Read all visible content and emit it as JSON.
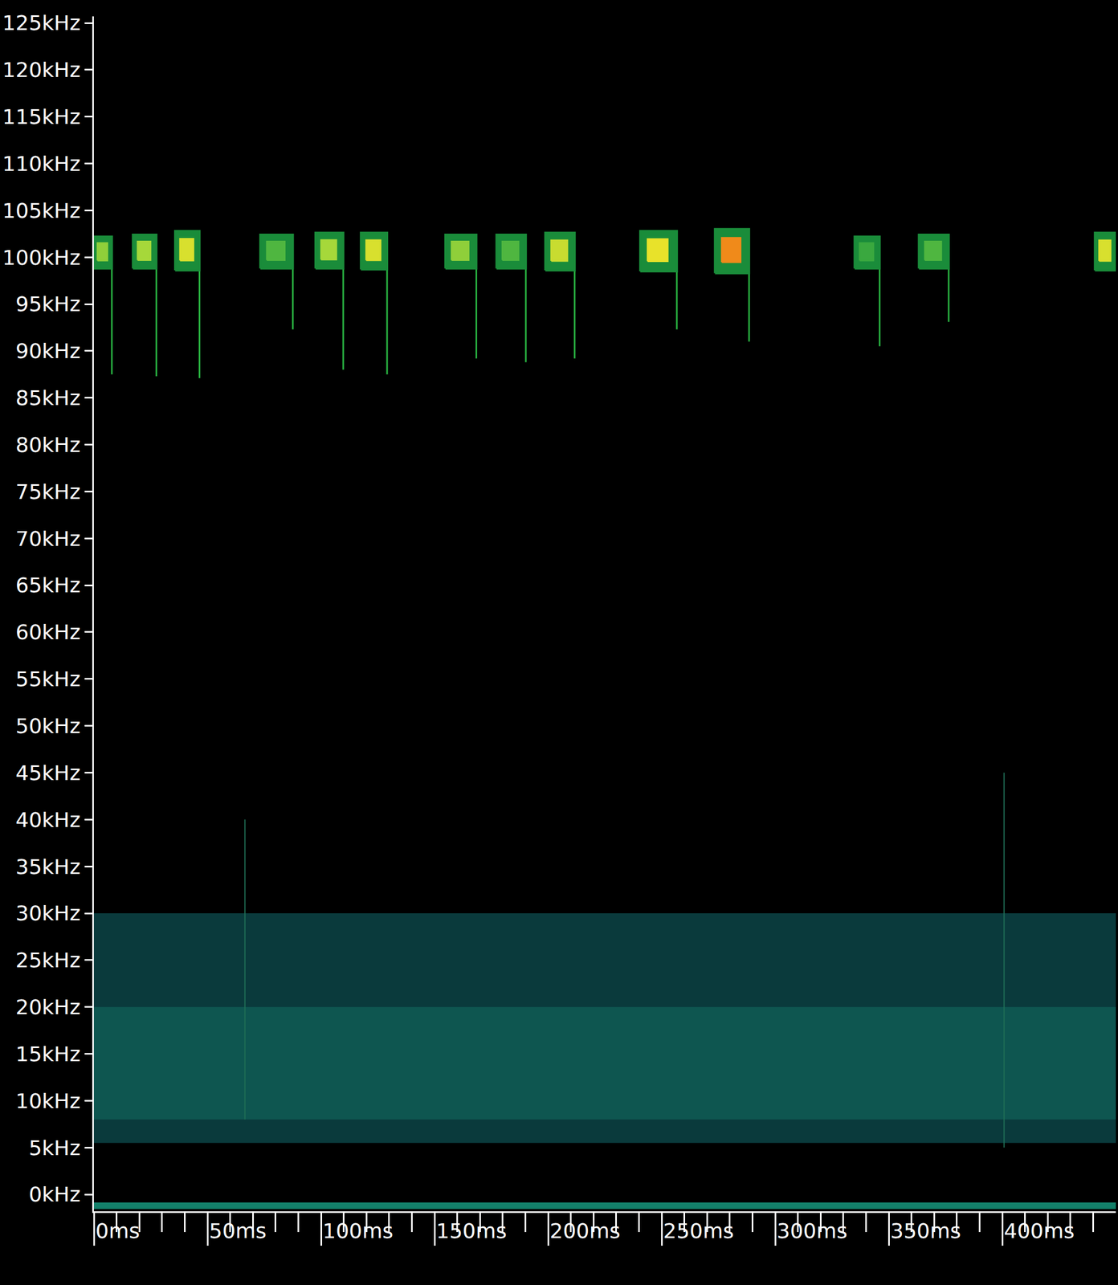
{
  "chart_data": {
    "type": "spectrogram",
    "xlim": [
      0,
      450
    ],
    "ylim": [
      -1.8,
      125.7
    ],
    "xticks": [
      {
        "value": 0,
        "label": "0ms"
      },
      {
        "value": 50,
        "label": "50ms"
      },
      {
        "value": 100,
        "label": "100ms"
      },
      {
        "value": 150,
        "label": "150ms"
      },
      {
        "value": 200,
        "label": "200ms"
      },
      {
        "value": 250,
        "label": "250ms"
      },
      {
        "value": 300,
        "label": "300ms"
      },
      {
        "value": 350,
        "label": "350ms"
      },
      {
        "value": 400,
        "label": "400ms"
      }
    ],
    "xticks_minor": [
      10,
      20,
      30,
      40,
      60,
      70,
      80,
      90,
      110,
      120,
      130,
      140,
      160,
      170,
      180,
      190,
      210,
      220,
      230,
      240,
      260,
      270,
      280,
      290,
      310,
      320,
      330,
      340,
      360,
      370,
      380,
      390,
      410,
      420,
      430,
      440
    ],
    "yticks": [
      {
        "value": 0,
        "label": "0kHz"
      },
      {
        "value": 5,
        "label": "5kHz"
      },
      {
        "value": 10,
        "label": "10kHz"
      },
      {
        "value": 15,
        "label": "15kHz"
      },
      {
        "value": 20,
        "label": "20kHz"
      },
      {
        "value": 25,
        "label": "25kHz"
      },
      {
        "value": 30,
        "label": "30kHz"
      },
      {
        "value": 35,
        "label": "35kHz"
      },
      {
        "value": 40,
        "label": "40kHz"
      },
      {
        "value": 45,
        "label": "45kHz"
      },
      {
        "value": 50,
        "label": "50kHz"
      },
      {
        "value": 55,
        "label": "55kHz"
      },
      {
        "value": 60,
        "label": "60kHz"
      },
      {
        "value": 65,
        "label": "65kHz"
      },
      {
        "value": 70,
        "label": "70kHz"
      },
      {
        "value": 75,
        "label": "75kHz"
      },
      {
        "value": 80,
        "label": "80kHz"
      },
      {
        "value": 85,
        "label": "85kHz"
      },
      {
        "value": 90,
        "label": "90kHz"
      },
      {
        "value": 95,
        "label": "95kHz"
      },
      {
        "value": 100,
        "label": "100kHz"
      },
      {
        "value": 105,
        "label": "105kHz"
      },
      {
        "value": 110,
        "label": "110kHz"
      },
      {
        "value": 115,
        "label": "115kHz"
      },
      {
        "value": 120,
        "label": "120kHz"
      },
      {
        "value": 125,
        "label": "125kHz"
      }
    ],
    "grid": false,
    "color": "#1a8c3a",
    "calls": [
      {
        "start": 0,
        "end": 7.9,
        "f_band": [
          98.8,
          102.2
        ],
        "tail_end": 87.5
      },
      {
        "start": 17.2,
        "end": 27.5,
        "f_band": [
          98.8,
          102.4
        ],
        "tail_end": 87.3
      },
      {
        "start": 35.8,
        "end": 46.5,
        "f_band": [
          98.6,
          102.8
        ],
        "tail_end": 87.1
      },
      {
        "start": 73.3,
        "end": 87.6,
        "f_band": [
          98.8,
          102.4
        ],
        "tail_end": 92.3
      },
      {
        "start": 97.6,
        "end": 109.8,
        "f_band": [
          98.8,
          102.6
        ],
        "tail_end": 88.0
      },
      {
        "start": 117.6,
        "end": 129.1,
        "f_band": [
          98.7,
          102.6
        ],
        "tail_end": 87.5
      },
      {
        "start": 154.8,
        "end": 168.4,
        "f_band": [
          98.8,
          102.4
        ],
        "tail_end": 89.2
      },
      {
        "start": 177.3,
        "end": 190.2,
        "f_band": [
          98.8,
          102.4
        ],
        "tail_end": 88.8
      },
      {
        "start": 198.8,
        "end": 211.7,
        "f_band": [
          98.6,
          102.6
        ],
        "tail_end": 89.2
      },
      {
        "start": 240.6,
        "end": 256.7,
        "f_band": [
          98.5,
          102.8
        ],
        "tail_end": 92.3
      },
      {
        "start": 273.5,
        "end": 288.5,
        "f_band": [
          98.3,
          103.0
        ],
        "tail_end": 91.0
      },
      {
        "start": 335.0,
        "end": 346.0,
        "f_band": [
          98.8,
          102.2
        ],
        "tail_end": 90.5
      },
      {
        "start": 363.3,
        "end": 376.4,
        "f_band": [
          98.8,
          102.4
        ],
        "tail_end": 93.1
      },
      {
        "start": 440.8,
        "end": 450,
        "f_band": [
          98.6,
          102.6
        ],
        "tail_end": 98.6
      }
    ],
    "colors": [
      "#8fcf3a",
      "#a6d83a",
      "#d8e02e",
      "#4fb640",
      "#a6d83a",
      "#d8e02e",
      "#8fcf3a",
      "#4fb640",
      "#c8dc30",
      "#e8e22a",
      "#f08a1a",
      "#3aa83f",
      "#4fb640",
      "#d8e02e"
    ],
    "noise": {
      "f_low": 5.5,
      "f_high": 30,
      "core": [
        8,
        20
      ],
      "color": "#0a3a3c",
      "core_color": "#0e5650"
    },
    "clicks": [
      {
        "t": 66.5,
        "f_low": 8,
        "f_high": 40
      },
      {
        "t": 400.8,
        "f_low": 5,
        "f_high": 45
      }
    ],
    "baseline": {
      "freq": -1.2,
      "color": "#13806a"
    }
  }
}
